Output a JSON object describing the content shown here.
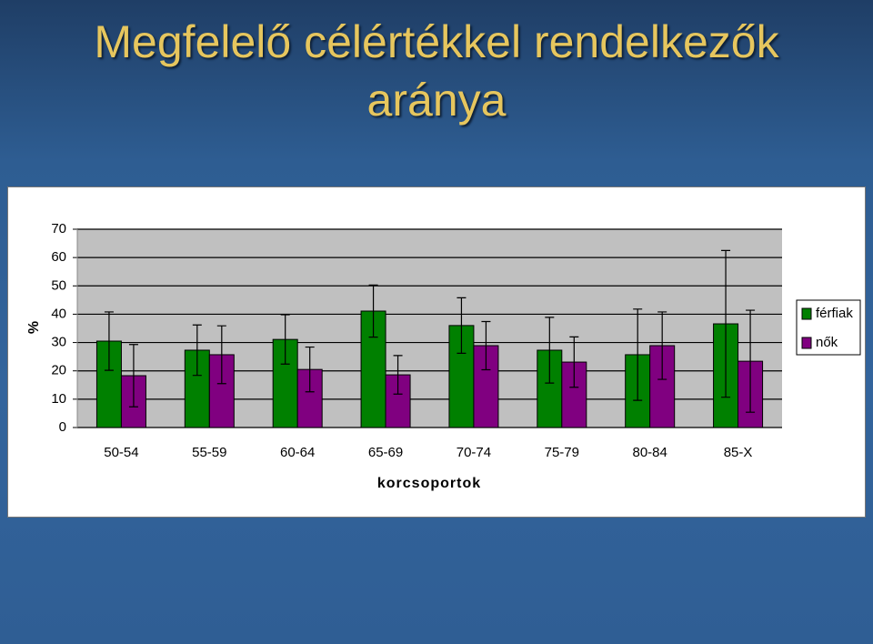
{
  "chart_data": {
    "type": "bar",
    "title": "Megfelelő célértékkel rendelkezők aránya",
    "categories": [
      "50-54",
      "55-59",
      "60-64",
      "65-69",
      "70-74",
      "75-79",
      "80-84",
      "85-X"
    ],
    "series": [
      {
        "name": "férfiak",
        "color": "#008000",
        "values": [
          30.5,
          27.3,
          31.1,
          41.1,
          36,
          27.3,
          25.7,
          36.6
        ],
        "errors": [
          10.3,
          8.9,
          8.7,
          9.2,
          9.8,
          11.6,
          16.1,
          25.9
        ]
      },
      {
        "name": "nők",
        "color": "#800080",
        "values": [
          18.3,
          25.7,
          20.5,
          18.6,
          28.9,
          23.1,
          28.9,
          23.4
        ],
        "errors": [
          11,
          10.2,
          7.9,
          6.8,
          8.5,
          8.9,
          11.9,
          18
        ]
      }
    ],
    "y_label": "%",
    "x_label": "korcsoportok",
    "ylim": [
      0,
      70
    ],
    "yticks": [
      0,
      10,
      20,
      30,
      40,
      50,
      60,
      70
    ],
    "grid": true,
    "legend": "right"
  }
}
